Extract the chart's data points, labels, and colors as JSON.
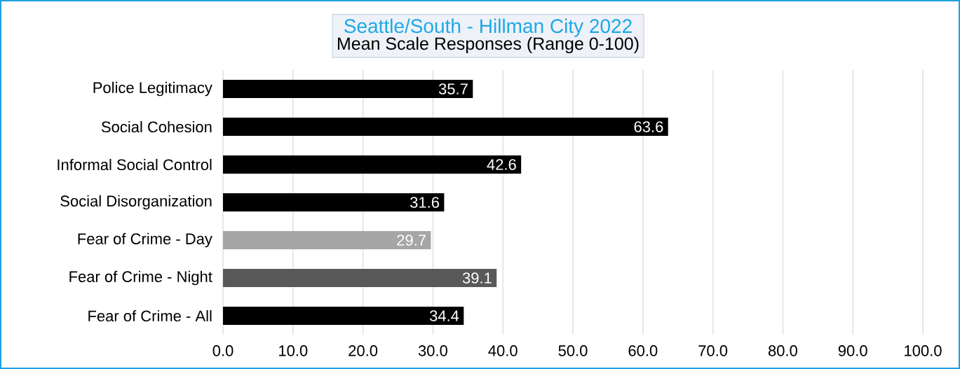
{
  "chart_data": {
    "type": "bar",
    "orientation": "horizontal",
    "title": "Seattle/South - Hillman City 2022",
    "subtitle": "Mean Scale Responses (Range 0-100)",
    "categories": [
      "Police Legitimacy",
      "Social Cohesion",
      "Informal Social Control",
      "Social Disorganization",
      "Fear of Crime - Day",
      "Fear of Crime - Night",
      "Fear of Crime - All"
    ],
    "values": [
      35.7,
      63.6,
      42.6,
      31.6,
      29.7,
      39.1,
      34.4
    ],
    "colors": [
      "#000000",
      "#000000",
      "#000000",
      "#000000",
      "#a6a6a6",
      "#595959",
      "#000000"
    ],
    "xlim": [
      0,
      100
    ],
    "xticks": [
      {
        "value": 0,
        "label": "0.0"
      },
      {
        "value": 10,
        "label": "10.0"
      },
      {
        "value": 20,
        "label": "20.0"
      },
      {
        "value": 30,
        "label": "30.0"
      },
      {
        "value": 40,
        "label": "40.0"
      },
      {
        "value": 50,
        "label": "50.0"
      },
      {
        "value": 60,
        "label": "60.0"
      },
      {
        "value": 70,
        "label": "70.0"
      },
      {
        "value": 80,
        "label": "80.0"
      },
      {
        "value": 90,
        "label": "90.0"
      },
      {
        "value": 100,
        "label": "100.0"
      }
    ],
    "grid": "x",
    "data_labels": true
  }
}
